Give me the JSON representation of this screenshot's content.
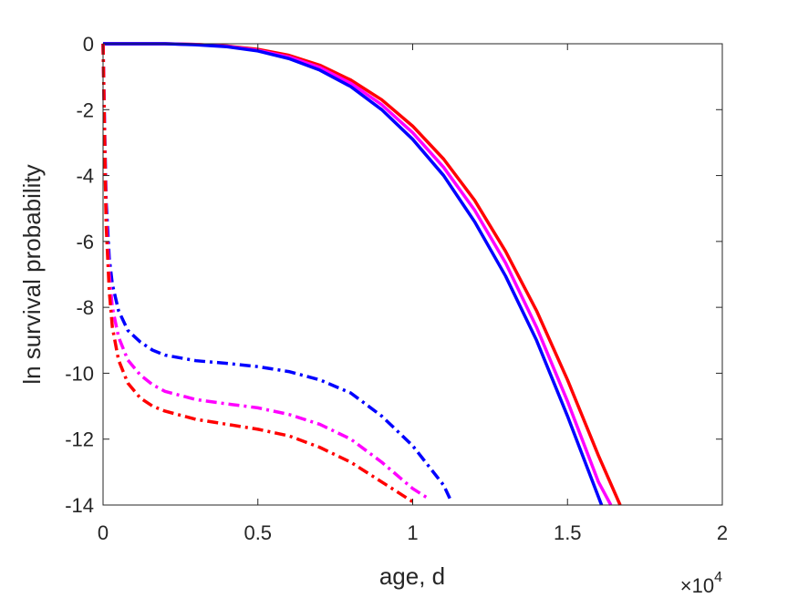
{
  "chart_data": {
    "type": "line",
    "title": "",
    "xlabel": "age, d",
    "ylabel": "ln survival probability",
    "x_exponent_label": {
      "base": "×10",
      "exp": "4"
    },
    "xlim": [
      0,
      20000
    ],
    "ylim": [
      -14,
      0
    ],
    "x_ticks": [
      0,
      5000,
      10000,
      15000,
      20000
    ],
    "x_tick_labels": [
      "0",
      "0.5",
      "1",
      "1.5",
      "2"
    ],
    "y_ticks": [
      0,
      -2,
      -4,
      -6,
      -8,
      -10,
      -12,
      -14
    ],
    "y_tick_labels": [
      "0",
      "-2",
      "-4",
      "-6",
      "-8",
      "-10",
      "-12",
      "-14"
    ],
    "grid": false,
    "legend": null,
    "series": [
      {
        "color": "#ff0000",
        "style": "solid",
        "x": [
          0,
          50,
          1000,
          2000,
          3000,
          4000,
          5000,
          6000,
          7000,
          8000,
          9000,
          10000,
          11000,
          12000,
          13000,
          14000,
          15000,
          16000,
          16700
        ],
        "y": [
          0,
          0,
          0,
          0,
          -0.02,
          -0.07,
          -0.17,
          -0.35,
          -0.65,
          -1.1,
          -1.7,
          -2.5,
          -3.5,
          -4.75,
          -6.3,
          -8.1,
          -10.2,
          -12.5,
          -14
        ]
      },
      {
        "color": "#ff00ff",
        "style": "solid",
        "x": [
          0,
          50,
          1000,
          2000,
          3000,
          4000,
          5000,
          6000,
          7000,
          8000,
          9000,
          10000,
          11000,
          12000,
          13000,
          14000,
          15000,
          16000,
          16400
        ],
        "y": [
          0,
          0,
          0,
          0,
          -0.02,
          -0.08,
          -0.2,
          -0.4,
          -0.72,
          -1.2,
          -1.85,
          -2.7,
          -3.75,
          -5.05,
          -6.65,
          -8.6,
          -10.85,
          -13.3,
          -14
        ]
      },
      {
        "color": "#0000ff",
        "style": "solid",
        "x": [
          0,
          50,
          1000,
          2000,
          3000,
          4000,
          5000,
          6000,
          7000,
          8000,
          9000,
          10000,
          11000,
          12000,
          13000,
          14000,
          15000,
          16100
        ],
        "y": [
          0,
          0,
          0,
          0,
          -0.03,
          -0.09,
          -0.22,
          -0.45,
          -0.8,
          -1.3,
          -2.0,
          -2.9,
          -4.0,
          -5.4,
          -7.05,
          -9.0,
          -11.3,
          -14
        ]
      },
      {
        "color": "#0000ff",
        "style": "dashdot",
        "x": [
          0,
          30,
          60,
          100,
          200,
          300,
          500,
          800,
          1200,
          1600,
          2000,
          3000,
          4000,
          5000,
          6000,
          7000,
          8000,
          9000,
          10000,
          11000,
          11200
        ],
        "y": [
          0,
          -1.5,
          -3.0,
          -4.8,
          -6.5,
          -7.3,
          -8.1,
          -8.7,
          -9.05,
          -9.3,
          -9.45,
          -9.62,
          -9.7,
          -9.8,
          -9.95,
          -10.2,
          -10.6,
          -11.3,
          -12.2,
          -13.4,
          -13.8
        ]
      },
      {
        "color": "#ff00ff",
        "style": "dashdot",
        "x": [
          0,
          30,
          60,
          100,
          200,
          300,
          500,
          800,
          1200,
          1600,
          2000,
          3000,
          4000,
          5000,
          6000,
          7000,
          8000,
          9000,
          10000,
          10500
        ],
        "y": [
          0,
          -1.6,
          -3.3,
          -5.2,
          -7.0,
          -8.0,
          -8.9,
          -9.6,
          -10.05,
          -10.35,
          -10.55,
          -10.8,
          -10.93,
          -11.05,
          -11.25,
          -11.55,
          -12.0,
          -12.7,
          -13.5,
          -13.8
        ]
      },
      {
        "color": "#ff0000",
        "style": "dashdot",
        "x": [
          0,
          30,
          60,
          100,
          200,
          300,
          500,
          800,
          1200,
          1600,
          2000,
          3000,
          4000,
          5000,
          6000,
          7000,
          8000,
          9000,
          10000
        ],
        "y": [
          0,
          -1.7,
          -3.5,
          -5.5,
          -7.5,
          -8.6,
          -9.6,
          -10.3,
          -10.75,
          -11.0,
          -11.15,
          -11.4,
          -11.55,
          -11.7,
          -11.9,
          -12.25,
          -12.7,
          -13.3,
          -13.9
        ]
      }
    ]
  }
}
